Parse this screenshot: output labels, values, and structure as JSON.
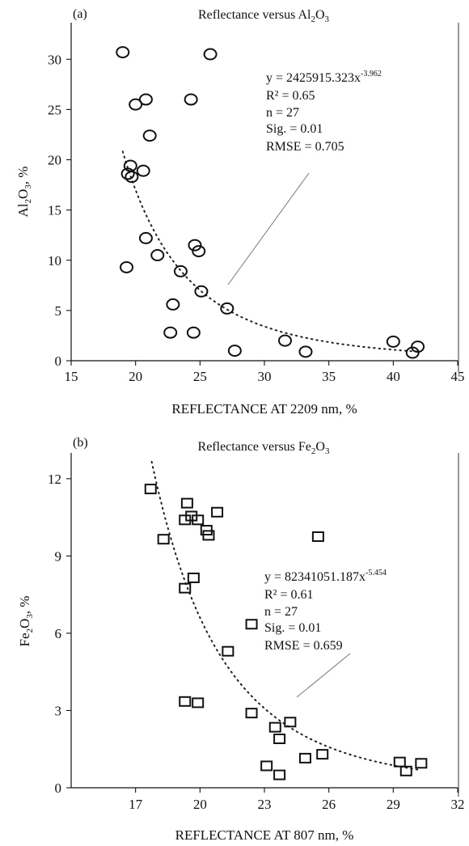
{
  "chart_data": [
    {
      "type": "scatter",
      "panel_label": "(a)",
      "title": "Reflectance versus Al2O3",
      "title_parts": {
        "pre": "Reflectance versus Al",
        "sub1": "2",
        "mid": "O",
        "sub2": "3"
      },
      "xlabel": "REFLECTANCE AT 2209 nm, %",
      "ylabel_parts": {
        "pre": "Al",
        "sub1": "2",
        "mid": "O",
        "sub2": "3",
        "post": ", %"
      },
      "xlim": [
        15,
        45
      ],
      "ylim": [
        0,
        33
      ],
      "xticks": [
        15,
        20,
        25,
        30,
        35,
        40,
        45
      ],
      "yticks": [
        0,
        5,
        10,
        15,
        20,
        25,
        30
      ],
      "marker": "circle",
      "points": [
        {
          "x": 19.0,
          "y": 30.7
        },
        {
          "x": 25.8,
          "y": 30.5
        },
        {
          "x": 20.0,
          "y": 25.5
        },
        {
          "x": 20.8,
          "y": 26.0
        },
        {
          "x": 24.3,
          "y": 26.0
        },
        {
          "x": 21.1,
          "y": 22.4
        },
        {
          "x": 19.6,
          "y": 19.4
        },
        {
          "x": 19.4,
          "y": 18.6
        },
        {
          "x": 19.7,
          "y": 18.3
        },
        {
          "x": 20.6,
          "y": 18.9
        },
        {
          "x": 20.8,
          "y": 12.2
        },
        {
          "x": 24.6,
          "y": 11.5
        },
        {
          "x": 24.9,
          "y": 10.9
        },
        {
          "x": 21.7,
          "y": 10.5
        },
        {
          "x": 19.3,
          "y": 9.3
        },
        {
          "x": 23.5,
          "y": 8.9
        },
        {
          "x": 25.1,
          "y": 6.9
        },
        {
          "x": 22.9,
          "y": 5.6
        },
        {
          "x": 27.1,
          "y": 5.2
        },
        {
          "x": 22.7,
          "y": 2.8
        },
        {
          "x": 24.5,
          "y": 2.8
        },
        {
          "x": 31.6,
          "y": 2.0
        },
        {
          "x": 27.7,
          "y": 1.0
        },
        {
          "x": 33.2,
          "y": 0.9
        },
        {
          "x": 40.0,
          "y": 1.9
        },
        {
          "x": 41.9,
          "y": 1.4
        },
        {
          "x": 41.5,
          "y": 0.8
        }
      ],
      "fit": {
        "a": 2425915.323,
        "b": -3.962,
        "x_range": [
          19.0,
          42.0
        ]
      },
      "annotation": {
        "eq_pre": "y = 2425915.323x",
        "eq_sup": "-3.962",
        "lines": [
          "R² = 0.65",
          "n = 27",
          "Sig. = 0.01",
          "RMSE = 0.705"
        ]
      }
    },
    {
      "type": "scatter",
      "panel_label": "(b)",
      "title": "Reflectance versus Fe2O3",
      "title_parts": {
        "pre": "Reflectance versus Fe",
        "sub1": "2",
        "mid": "O",
        "sub2": "3"
      },
      "xlabel": "REFLECTANCE AT 807 nm, %",
      "ylabel_parts": {
        "pre": "Fe",
        "sub1": "2",
        "mid": "O",
        "sub2": "3",
        "post": ", %"
      },
      "xlim": [
        14,
        32
      ],
      "ylim": [
        0,
        13
      ],
      "xticks": [
        17,
        20,
        23,
        26,
        29,
        32
      ],
      "yticks": [
        0,
        3,
        6,
        9,
        12
      ],
      "marker": "square",
      "points": [
        {
          "x": 17.7,
          "y": 11.6
        },
        {
          "x": 19.4,
          "y": 11.05
        },
        {
          "x": 20.8,
          "y": 10.7
        },
        {
          "x": 19.3,
          "y": 10.4
        },
        {
          "x": 19.6,
          "y": 10.55
        },
        {
          "x": 19.9,
          "y": 10.4
        },
        {
          "x": 20.3,
          "y": 10.0
        },
        {
          "x": 20.4,
          "y": 9.8
        },
        {
          "x": 25.5,
          "y": 9.75
        },
        {
          "x": 18.3,
          "y": 9.65
        },
        {
          "x": 19.7,
          "y": 8.15
        },
        {
          "x": 19.3,
          "y": 7.75
        },
        {
          "x": 22.4,
          "y": 6.35
        },
        {
          "x": 21.3,
          "y": 5.3
        },
        {
          "x": 19.3,
          "y": 3.35
        },
        {
          "x": 19.9,
          "y": 3.3
        },
        {
          "x": 22.4,
          "y": 2.9
        },
        {
          "x": 24.2,
          "y": 2.55
        },
        {
          "x": 23.5,
          "y": 2.35
        },
        {
          "x": 23.7,
          "y": 1.9
        },
        {
          "x": 25.7,
          "y": 1.3
        },
        {
          "x": 24.9,
          "y": 1.15
        },
        {
          "x": 23.1,
          "y": 0.85
        },
        {
          "x": 23.7,
          "y": 0.5
        },
        {
          "x": 29.3,
          "y": 1.0
        },
        {
          "x": 30.3,
          "y": 0.95
        },
        {
          "x": 29.6,
          "y": 0.65
        }
      ],
      "fit": {
        "a": 82341051.187,
        "b": -5.454,
        "x_range": [
          17.75,
          30.3
        ]
      },
      "annotation": {
        "eq_pre": "y = 82341051.187x",
        "eq_sup": "-5.454",
        "lines": [
          "R² = 0.61",
          "n = 27",
          "Sig. = 0.01",
          "RMSE = 0.659"
        ]
      }
    }
  ]
}
